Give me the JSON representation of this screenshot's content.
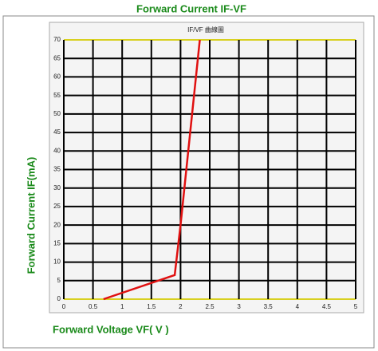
{
  "chart_data": {
    "type": "line",
    "title": "Forward Current IF-VF",
    "subtitle": "IF/VF 曲線圖",
    "xlabel": "Forward Voltage VF( V )",
    "ylabel": "Forward  Current  IF(mA)",
    "series": [
      {
        "name": "IF-VF",
        "color": "#e01010",
        "x": [
          0.68,
          1.9,
          2.0,
          2.33
        ],
        "values": [
          0,
          6.5,
          20,
          70
        ]
      }
    ],
    "xlim": [
      0,
      5
    ],
    "xticks": [
      0,
      0.5,
      1,
      1.5,
      2,
      2.5,
      3,
      3.5,
      4,
      4.5,
      5
    ],
    "ylim": [
      0,
      70
    ],
    "yticks": [
      0,
      5,
      10,
      15,
      20,
      25,
      30,
      35,
      40,
      45,
      50,
      55,
      60,
      65,
      70
    ],
    "grid": true
  }
}
